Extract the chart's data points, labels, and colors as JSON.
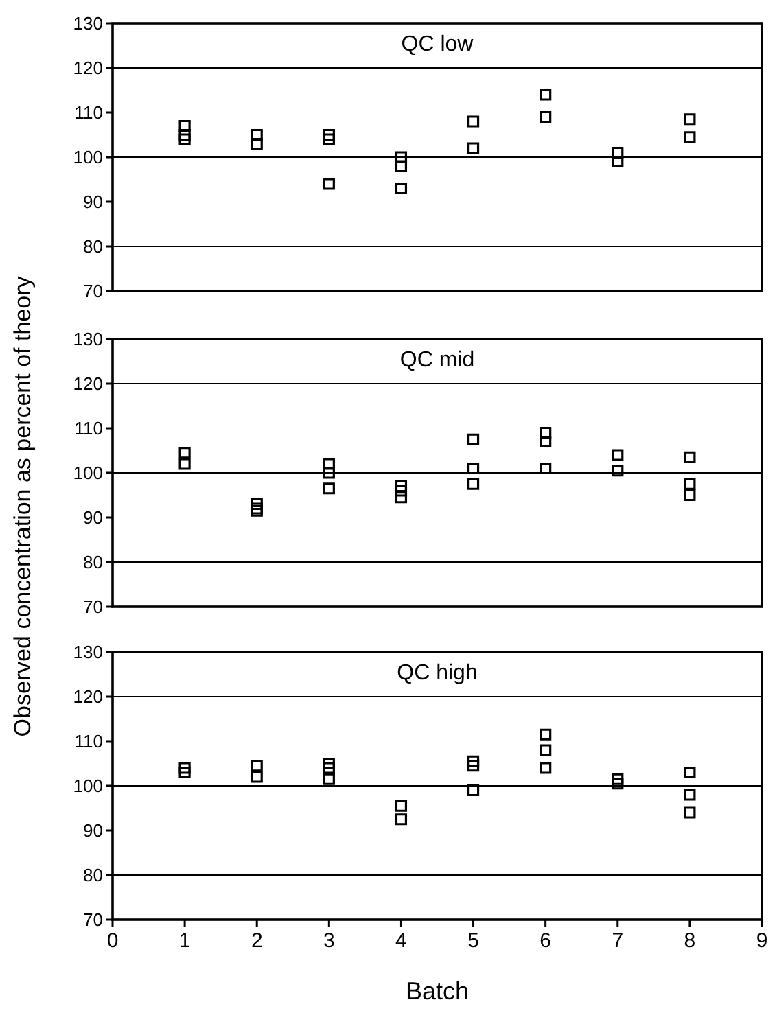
{
  "chart_data": [
    {
      "type": "scatter",
      "title": "QC low",
      "xlim": [
        0,
        9
      ],
      "ylim": [
        70,
        130
      ],
      "yticks": [
        70,
        80,
        90,
        100,
        110,
        120,
        130
      ],
      "tick_labels": "y",
      "marker": "square",
      "grid": false,
      "ref_lines": [
        {
          "axis": "y",
          "value": 80
        },
        {
          "axis": "y",
          "value": 100
        },
        {
          "axis": "y",
          "value": 120
        }
      ],
      "series": [
        {
          "color": "#000000",
          "x": [
            1,
            1,
            1,
            2,
            2,
            3,
            3,
            3,
            4,
            4,
            4,
            5,
            5,
            6,
            6,
            7,
            7,
            8,
            8
          ],
          "values": [
            107,
            105,
            104,
            105,
            103,
            105,
            104,
            94,
            100,
            98,
            93,
            108,
            102,
            114,
            109,
            101,
            99,
            108.5,
            104.5
          ]
        }
      ]
    },
    {
      "type": "scatter",
      "title": "QC mid",
      "ylabel": "Observed concentration as percent of theory",
      "xlim": [
        0,
        9
      ],
      "ylim": [
        70,
        130
      ],
      "yticks": [
        70,
        80,
        90,
        100,
        110,
        120,
        130
      ],
      "tick_labels": "y",
      "marker": "square",
      "grid": false,
      "ref_lines": [
        {
          "axis": "y",
          "value": 80
        },
        {
          "axis": "y",
          "value": 100
        },
        {
          "axis": "y",
          "value": 120
        }
      ],
      "series": [
        {
          "color": "#000000",
          "x": [
            1,
            1,
            2,
            2,
            2,
            3,
            3,
            3,
            4,
            4,
            4,
            5,
            5,
            5,
            6,
            6,
            6,
            7,
            7,
            8,
            8,
            8
          ],
          "values": [
            104.5,
            102,
            93,
            92,
            91.5,
            102,
            100,
            96.5,
            97,
            96,
            94.5,
            107.5,
            101,
            97.5,
            109,
            107,
            101,
            104,
            100.5,
            103.5,
            97.5,
            95
          ]
        }
      ]
    },
    {
      "type": "scatter",
      "title": "QC high",
      "xlabel": "Batch",
      "xlim": [
        0,
        9
      ],
      "xticks": [
        0,
        1,
        2,
        3,
        4,
        5,
        6,
        7,
        8,
        9
      ],
      "ylim": [
        70,
        130
      ],
      "yticks": [
        70,
        80,
        90,
        100,
        110,
        120,
        130
      ],
      "marker": "square",
      "grid": false,
      "ref_lines": [
        {
          "axis": "y",
          "value": 80
        },
        {
          "axis": "y",
          "value": 100
        },
        {
          "axis": "y",
          "value": 120
        }
      ],
      "series": [
        {
          "color": "#000000",
          "x": [
            1,
            1,
            2,
            2,
            3,
            3,
            3,
            4,
            4,
            5,
            5,
            5,
            6,
            6,
            6,
            7,
            7,
            8,
            8,
            8
          ],
          "values": [
            104,
            103,
            104.5,
            102,
            105,
            104,
            101.5,
            95.5,
            92.5,
            105.5,
            104.5,
            99,
            111.5,
            108,
            104,
            101.5,
            100.5,
            103,
            98,
            94
          ]
        }
      ]
    }
  ]
}
